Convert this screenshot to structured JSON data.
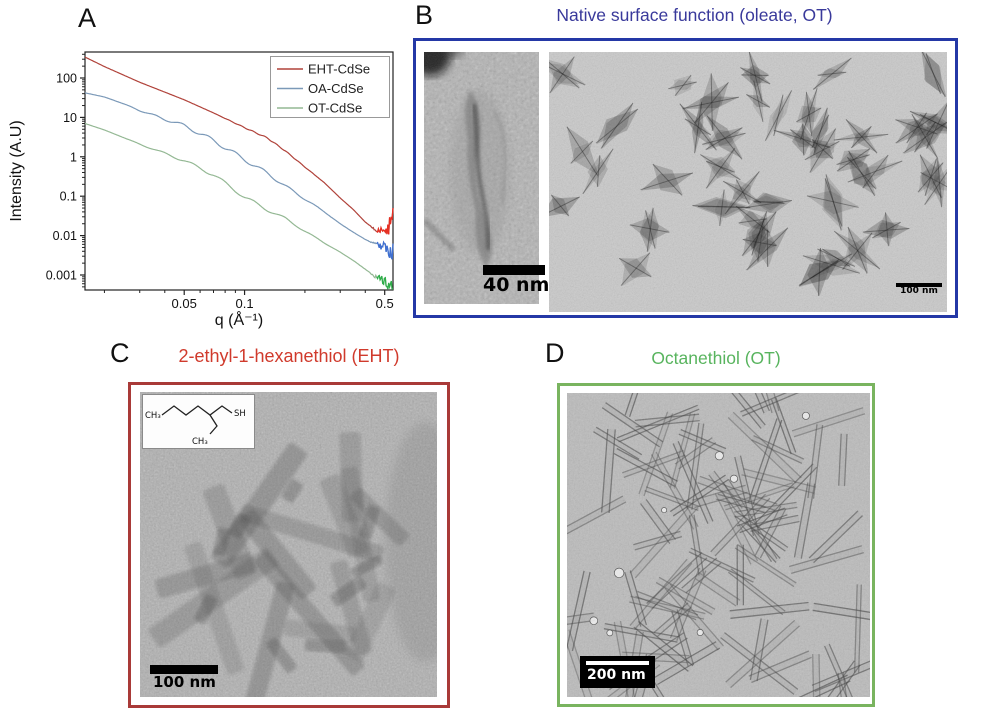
{
  "panel_a": {
    "label": "A"
  },
  "panel_b": {
    "label": "B",
    "title": "Native surface function (oleate, OT)",
    "scalebar_closeup": "40 nm",
    "scalebar_wide": "100 nm"
  },
  "panel_c": {
    "label": "C",
    "title": "2-ethyl-1-hexanethiol (EHT)",
    "scalebar": "100 nm",
    "molecule": {
      "terminal_methyl": "CH₃",
      "branch_methyl": "CH₃",
      "thiol": "SH"
    }
  },
  "panel_d": {
    "label": "D",
    "title": "Octanethiol (OT)",
    "scalebar": "200 nm"
  },
  "colors": {
    "panel_b_border": "#2438a6",
    "panel_b_title": "#39399b",
    "panel_c_border": "#a93a38",
    "panel_c_title": "#d03a2c",
    "panel_d_border": "#79b45f",
    "panel_d_title": "#58b45e"
  },
  "chart_data": {
    "type": "line",
    "title": "",
    "xlabel": "q (Å⁻¹)",
    "ylabel": "Intensity (A.U)",
    "x_scale": "log",
    "y_scale": "log",
    "xlim": [
      0.016,
      0.55
    ],
    "ylim": [
      0.0004,
      460
    ],
    "x_ticks": [
      0.05,
      0.1,
      0.5
    ],
    "y_ticks": [
      100,
      10,
      1,
      0.1,
      0.01,
      0.001
    ],
    "legend_position": "top-right",
    "grid": false,
    "series": [
      {
        "name": "EHT-CdSe",
        "color": "#b0423a",
        "tail_color": "#e62e22",
        "x": [
          0.016,
          0.02,
          0.03,
          0.05,
          0.07,
          0.1,
          0.13,
          0.16,
          0.2,
          0.25,
          0.3,
          0.35,
          0.4,
          0.45,
          0.5,
          0.55
        ],
        "y": [
          340,
          195,
          78,
          28,
          13,
          5.5,
          3.0,
          1.4,
          0.55,
          0.22,
          0.09,
          0.045,
          0.022,
          0.014,
          0.012,
          0.025
        ]
      },
      {
        "name": "OA-CdSe",
        "color": "#7b99b8",
        "tail_color": "#3f6fd1",
        "x": [
          0.016,
          0.02,
          0.025,
          0.03,
          0.04,
          0.05,
          0.07,
          0.1,
          0.13,
          0.16,
          0.2,
          0.25,
          0.3,
          0.35,
          0.4,
          0.45,
          0.5,
          0.55
        ],
        "y": [
          42,
          33,
          22,
          15,
          9.0,
          6.2,
          2.6,
          0.85,
          0.38,
          0.18,
          0.085,
          0.04,
          0.02,
          0.012,
          0.008,
          0.006,
          0.005,
          0.004
        ]
      },
      {
        "name": "OT-CdSe",
        "color": "#94b894",
        "tail_color": "#2fae4a",
        "x": [
          0.016,
          0.02,
          0.03,
          0.05,
          0.07,
          0.1,
          0.13,
          0.16,
          0.2,
          0.25,
          0.3,
          0.35,
          0.4,
          0.45,
          0.5,
          0.55
        ],
        "y": [
          7,
          4.8,
          2.1,
          0.8,
          0.35,
          0.095,
          0.045,
          0.027,
          0.013,
          0.0065,
          0.0038,
          0.0023,
          0.0014,
          0.0009,
          0.0007,
          0.0006
        ]
      }
    ]
  }
}
